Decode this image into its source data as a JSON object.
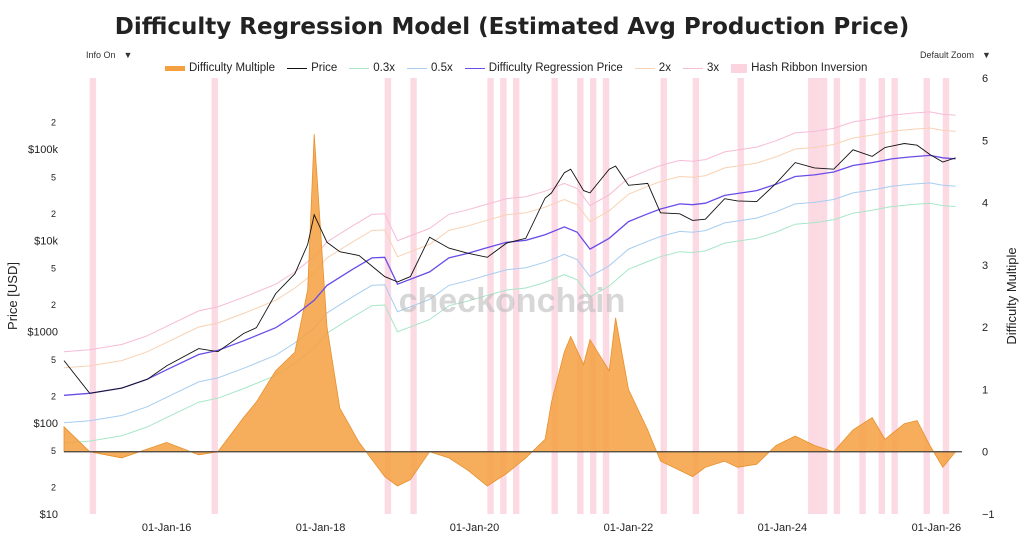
{
  "chart_data": {
    "type": "line",
    "title": "Difficulty Regression Model (Estimated Avg Production Price)",
    "ylabel": "Price [USD]",
    "y2label": "Difficulty Multiple",
    "yscale": "log",
    "ylim": [
      10,
      600000
    ],
    "y2lim": [
      -1,
      6
    ],
    "xlim": [
      "2014-09-01",
      "2026-05-01"
    ],
    "x_ticks": [
      "01-Jan-16",
      "01-Jan-18",
      "01-Jan-20",
      "01-Jan-22",
      "01-Jan-24",
      "01-Jan-26"
    ],
    "y_ticks": [
      "$10",
      "2",
      "5",
      "$100",
      "2",
      "5",
      "$1000",
      "2",
      "5",
      "$10k",
      "2",
      "5",
      "$100k",
      "2"
    ],
    "y2_ticks": [
      "−1",
      "0",
      "1",
      "2",
      "3",
      "4",
      "5",
      "6"
    ],
    "legend_placement": "top",
    "series": [
      {
        "name": "Difficulty Multiple",
        "color": "#f5a040",
        "axis": "right",
        "style": "area",
        "x": [
          "2014-09",
          "2015-01",
          "2015-06",
          "2016-01",
          "2016-06",
          "2016-09",
          "2017-01",
          "2017-03",
          "2017-06",
          "2017-09",
          "2017-11",
          "2017-12",
          "2018-02",
          "2018-04",
          "2018-07",
          "2018-11",
          "2019-01",
          "2019-03",
          "2019-06",
          "2019-09",
          "2019-12",
          "2020-03",
          "2020-06",
          "2020-09",
          "2020-12",
          "2021-01",
          "2021-03",
          "2021-04",
          "2021-06",
          "2021-07",
          "2021-10",
          "2021-11",
          "2022-01",
          "2022-04",
          "2022-06",
          "2022-09",
          "2022-11",
          "2023-01",
          "2023-04",
          "2023-06",
          "2023-09",
          "2023-12",
          "2024-03",
          "2024-06",
          "2024-09",
          "2024-12",
          "2025-03",
          "2025-05",
          "2025-08",
          "2025-10",
          "2025-12",
          "2026-02",
          "2026-04"
        ],
        "values": [
          0.4,
          0.0,
          -0.1,
          0.15,
          -0.05,
          0.0,
          0.55,
          0.8,
          1.3,
          1.6,
          2.6,
          5.1,
          2.0,
          0.7,
          0.15,
          -0.4,
          -0.55,
          -0.45,
          0.0,
          -0.1,
          -0.3,
          -0.55,
          -0.35,
          -0.1,
          0.2,
          0.8,
          1.6,
          1.85,
          1.4,
          1.8,
          1.3,
          2.15,
          1.0,
          0.35,
          -0.15,
          -0.3,
          -0.4,
          -0.25,
          -0.15,
          -0.25,
          -0.2,
          0.1,
          0.25,
          0.1,
          0.0,
          0.35,
          0.55,
          0.2,
          0.45,
          0.5,
          0.1,
          -0.25,
          0.0
        ]
      },
      {
        "name": "Price",
        "color": "#111111",
        "axis": "left",
        "style": "line",
        "x": [
          "2014-09",
          "2015-01",
          "2015-06",
          "2015-10",
          "2016-01",
          "2016-06",
          "2016-09",
          "2017-01",
          "2017-03",
          "2017-06",
          "2017-09",
          "2017-11",
          "2017-12",
          "2018-02",
          "2018-04",
          "2018-07",
          "2018-11",
          "2019-01",
          "2019-03",
          "2019-06",
          "2019-09",
          "2019-12",
          "2020-03",
          "2020-06",
          "2020-09",
          "2020-12",
          "2021-01",
          "2021-03",
          "2021-04",
          "2021-06",
          "2021-07",
          "2021-10",
          "2021-11",
          "2022-01",
          "2022-04",
          "2022-06",
          "2022-09",
          "2022-11",
          "2023-01",
          "2023-04",
          "2023-06",
          "2023-09",
          "2023-12",
          "2024-03",
          "2024-06",
          "2024-09",
          "2024-12",
          "2025-03",
          "2025-05",
          "2025-08",
          "2025-10",
          "2025-12",
          "2026-02",
          "2026-04"
        ],
        "values": [
          480,
          210,
          240,
          300,
          420,
          650,
          600,
          950,
          1100,
          2600,
          4300,
          9000,
          19000,
          9500,
          7500,
          6800,
          4000,
          3500,
          4000,
          10800,
          8200,
          7200,
          6500,
          9300,
          10500,
          29000,
          33000,
          55000,
          60000,
          35000,
          33000,
          60000,
          65000,
          40000,
          42000,
          20000,
          19500,
          16500,
          17000,
          28500,
          27000,
          26500,
          42000,
          71000,
          62000,
          60000,
          98000,
          83000,
          104000,
          115000,
          110000,
          87000,
          72000,
          80000
        ]
      },
      {
        "name": "0.3x",
        "color": "#a8e6c8",
        "axis": "left",
        "style": "line",
        "multiplier": 0.3
      },
      {
        "name": "0.5x",
        "color": "#a8cdf0",
        "axis": "left",
        "style": "line",
        "multiplier": 0.5
      },
      {
        "name": "Difficulty Regression Price",
        "color": "#6a4ce8",
        "axis": "left",
        "style": "line",
        "x": [
          "2014-09",
          "2015-01",
          "2015-06",
          "2015-10",
          "2016-01",
          "2016-06",
          "2016-09",
          "2017-01",
          "2017-06",
          "2017-09",
          "2017-12",
          "2018-02",
          "2018-06",
          "2018-09",
          "2018-11",
          "2019-01",
          "2019-06",
          "2019-09",
          "2019-12",
          "2020-03",
          "2020-06",
          "2020-09",
          "2020-12",
          "2021-03",
          "2021-05",
          "2021-07",
          "2021-10",
          "2022-01",
          "2022-04",
          "2022-06",
          "2022-09",
          "2022-11",
          "2023-01",
          "2023-04",
          "2023-09",
          "2023-12",
          "2024-03",
          "2024-06",
          "2024-09",
          "2024-12",
          "2025-03",
          "2025-06",
          "2025-09",
          "2025-12",
          "2026-02",
          "2026-04"
        ],
        "values": [
          200,
          210,
          240,
          300,
          380,
          560,
          620,
          790,
          1100,
          1500,
          2200,
          3200,
          4800,
          6400,
          6500,
          3300,
          4500,
          6400,
          7200,
          8300,
          9500,
          10000,
          11500,
          14000,
          12300,
          8000,
          10500,
          16000,
          19500,
          22000,
          25000,
          24500,
          25500,
          31000,
          35000,
          41000,
          50000,
          52000,
          56000,
          66000,
          71000,
          78000,
          82000,
          85000,
          80000,
          78000
        ]
      },
      {
        "name": "2x",
        "color": "#f8d2b4",
        "axis": "left",
        "style": "line",
        "multiplier": 2
      },
      {
        "name": "3x",
        "color": "#f6bcd6",
        "axis": "left",
        "style": "line",
        "multiplier": 3
      },
      {
        "name": "Hash Ribbon Inversion",
        "color": "#fcd4df",
        "axis": "band",
        "style": "band",
        "bands": [
          [
            "2015-01",
            "2015-02"
          ],
          [
            "2016-08",
            "2016-09"
          ],
          [
            "2018-11",
            "2018-12"
          ],
          [
            "2019-03",
            "2019-04"
          ],
          [
            "2020-03",
            "2020-04"
          ],
          [
            "2020-05",
            "2020-06"
          ],
          [
            "2020-07",
            "2020-08"
          ],
          [
            "2021-01",
            "2021-02"
          ],
          [
            "2021-05",
            "2021-06"
          ],
          [
            "2021-07",
            "2021-08"
          ],
          [
            "2021-09",
            "2021-10"
          ],
          [
            "2022-06",
            "2022-07"
          ],
          [
            "2022-11",
            "2022-12"
          ],
          [
            "2023-06",
            "2023-07"
          ],
          [
            "2024-05",
            "2024-06"
          ],
          [
            "2024-06",
            "2024-07"
          ],
          [
            "2024-07",
            "2024-08"
          ],
          [
            "2024-09",
            "2024-10"
          ],
          [
            "2025-01",
            "2025-02"
          ],
          [
            "2025-04",
            "2025-05"
          ],
          [
            "2025-06",
            "2025-07"
          ],
          [
            "2025-11",
            "2025-12"
          ],
          [
            "2026-02",
            "2026-03"
          ]
        ]
      }
    ]
  },
  "ui": {
    "info_label": "Info On",
    "zoom_label": "Default Zoom",
    "dropdown_arrow": "▼",
    "watermark": "checkonchain"
  }
}
